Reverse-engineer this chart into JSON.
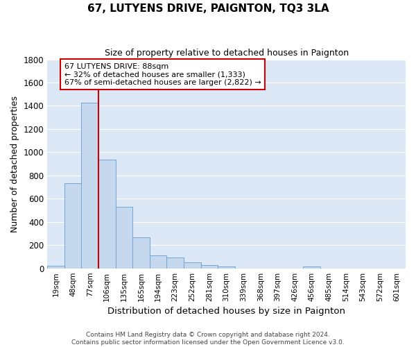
{
  "title": "67, LUTYENS DRIVE, PAIGNTON, TQ3 3LA",
  "subtitle": "Size of property relative to detached houses in Paignton",
  "xlabel": "Distribution of detached houses by size in Paignton",
  "ylabel": "Number of detached properties",
  "bar_color": "#c5d8ed",
  "bar_edge_color": "#6fa8d4",
  "plot_bg_color": "#dce8f5",
  "fig_bg_color": "#ffffff",
  "grid_color": "#ffffff",
  "categories": [
    "19sqm",
    "48sqm",
    "77sqm",
    "106sqm",
    "135sqm",
    "165sqm",
    "194sqm",
    "223sqm",
    "252sqm",
    "281sqm",
    "310sqm",
    "339sqm",
    "368sqm",
    "397sqm",
    "426sqm",
    "456sqm",
    "485sqm",
    "514sqm",
    "543sqm",
    "572sqm",
    "601sqm"
  ],
  "values": [
    20,
    735,
    1425,
    935,
    530,
    270,
    110,
    95,
    50,
    25,
    15,
    0,
    0,
    0,
    0,
    15,
    0,
    0,
    0,
    0,
    0
  ],
  "vline_x_bar_index": 2,
  "vline_color": "#cc0000",
  "annotation_line1": "67 LUTYENS DRIVE: 88sqm",
  "annotation_line2": "← 32% of detached houses are smaller (1,333)",
  "annotation_line3": "67% of semi-detached houses are larger (2,822) →",
  "annotation_box_color": "#ffffff",
  "annotation_box_edge": "#cc0000",
  "ylim": [
    0,
    1800
  ],
  "yticks": [
    0,
    200,
    400,
    600,
    800,
    1000,
    1200,
    1400,
    1600,
    1800
  ],
  "footnote": "Contains HM Land Registry data © Crown copyright and database right 2024.\nContains public sector information licensed under the Open Government Licence v3.0.",
  "figsize": [
    6.0,
    5.0
  ],
  "dpi": 100
}
